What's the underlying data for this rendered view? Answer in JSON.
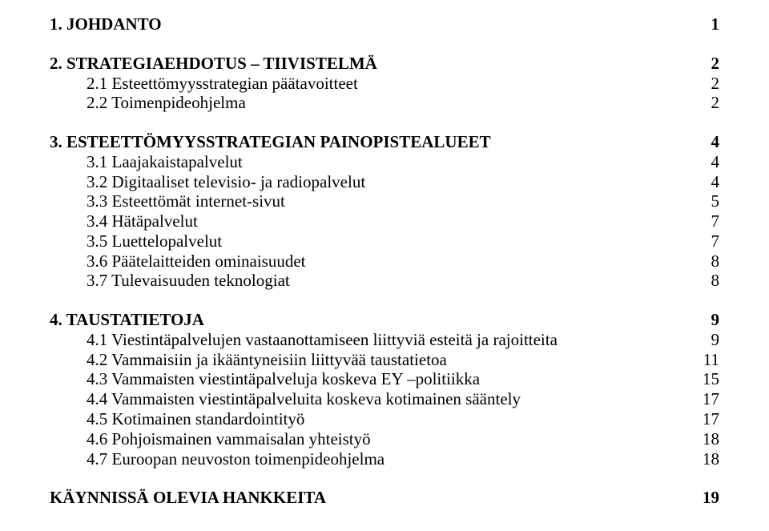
{
  "toc": {
    "s1": {
      "label": "1. JOHDANTO",
      "page": "1"
    },
    "s2": {
      "label": "2. STRATEGIAEHDOTUS – TIIVISTELMÄ",
      "page": "2"
    },
    "s2_1": {
      "label": "2.1 Esteettömyysstrategian päätavoitteet",
      "page": "2"
    },
    "s2_2": {
      "label": "2.2 Toimenpideohjelma",
      "page": "2"
    },
    "s3": {
      "label": "3. ESTEETTÖMYYSSTRATEGIAN PAINOPISTEALUEET",
      "page": "4"
    },
    "s3_1": {
      "label": "3.1 Laajakaistapalvelut",
      "page": "4"
    },
    "s3_2": {
      "label": "3.2 Digitaaliset televisio- ja radiopalvelut",
      "page": "4"
    },
    "s3_3": {
      "label": "3.3 Esteettömät internet-sivut",
      "page": "5"
    },
    "s3_4": {
      "label": "3.4 Hätäpalvelut",
      "page": "7"
    },
    "s3_5": {
      "label": "3.5 Luettelopalvelut",
      "page": "7"
    },
    "s3_6": {
      "label": "3.6 Päätelaitteiden ominaisuudet",
      "page": "8"
    },
    "s3_7": {
      "label": "3.7 Tulevaisuuden teknologiat",
      "page": "8"
    },
    "s4": {
      "label": "4. TAUSTATIETOJA",
      "page": "9"
    },
    "s4_1": {
      "label": "4.1 Viestintäpalvelujen vastaanottamiseen liittyviä esteitä ja rajoitteita",
      "page": "9"
    },
    "s4_2": {
      "label": "4.2 Vammaisiin ja ikääntyneisiin liittyvää taustatietoa",
      "page": "11"
    },
    "s4_3": {
      "label": "4.3 Vammaisten viestintäpalveluja koskeva EY –politiikka",
      "page": "15"
    },
    "s4_4": {
      "label": "4.4 Vammaisten viestintäpalveluita koskeva kotimainen sääntely",
      "page": "17"
    },
    "s4_5": {
      "label": "4.5 Kotimainen standardointityö",
      "page": "17"
    },
    "s4_6": {
      "label": "4.6 Pohjoismainen vammaisalan yhteistyö",
      "page": "18"
    },
    "s4_7": {
      "label": "4.7 Euroopan neuvoston toimenpideohjelma",
      "page": "18"
    },
    "s5": {
      "label": "KÄYNNISSÄ OLEVIA HANKKEITA",
      "page": "19"
    }
  }
}
